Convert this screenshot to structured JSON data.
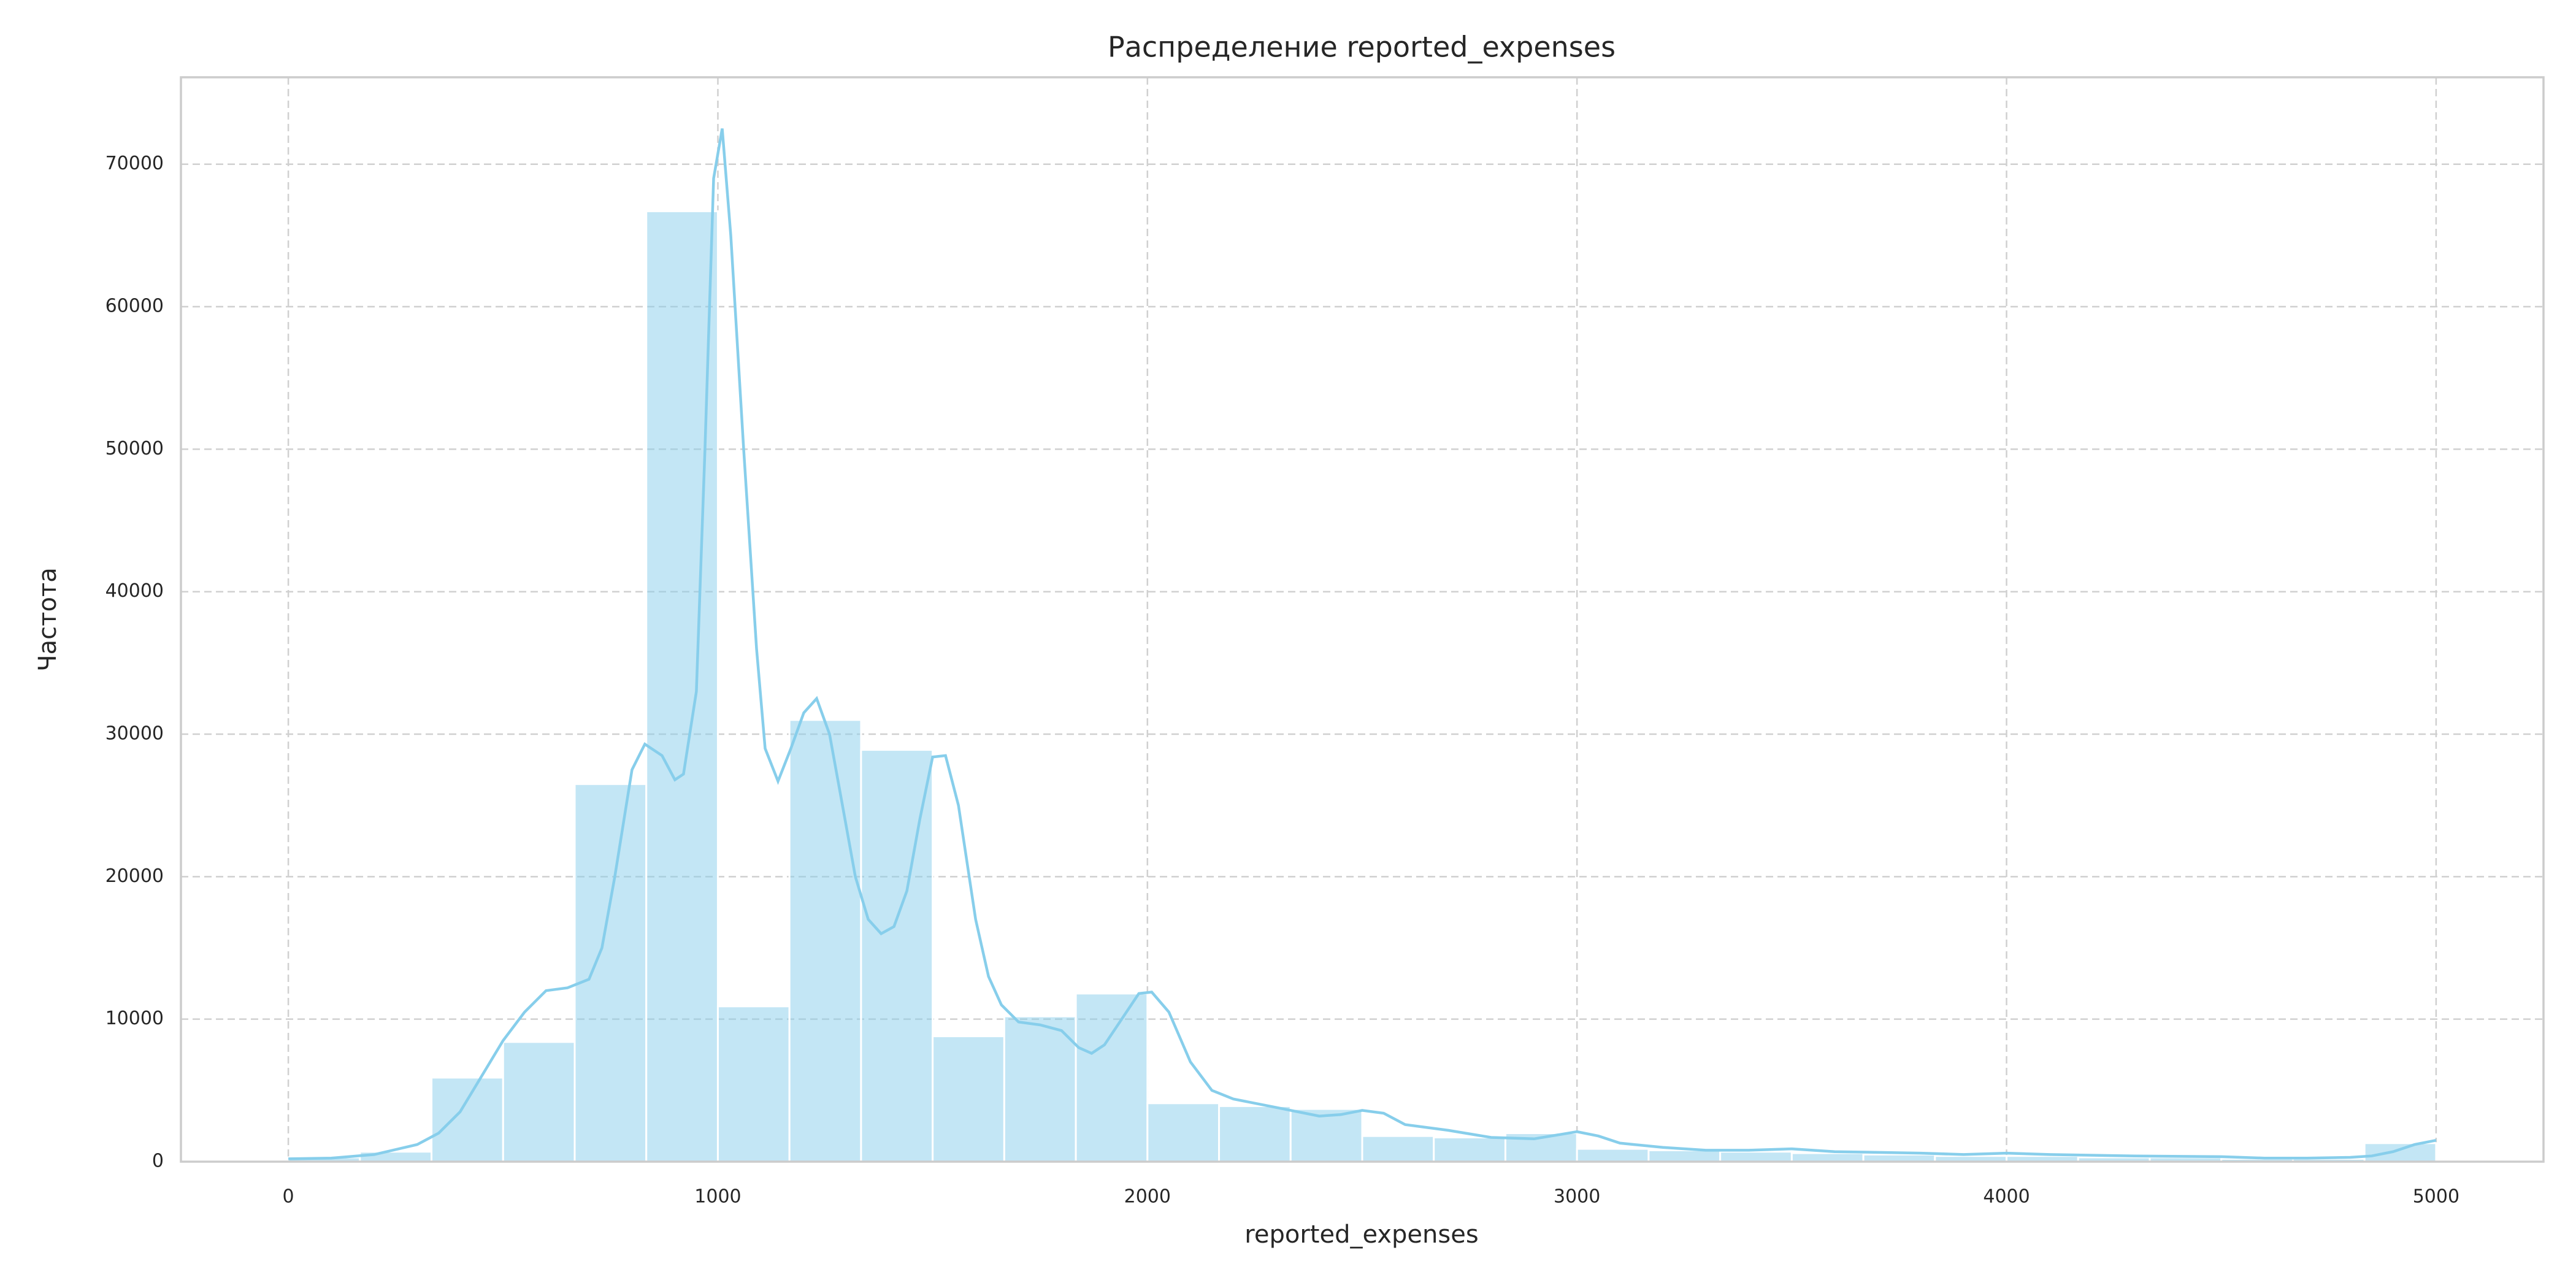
{
  "chart_data": {
    "type": "histogram",
    "title": "Распределение reported_expenses",
    "x_label": "reported_expenses",
    "y_label": "Частота",
    "bins": [
      0,
      166.67,
      333.33,
      500,
      666.67,
      833.33,
      1000,
      1166.67,
      1333.33,
      1500,
      1666.67,
      1833.33,
      2000,
      2166.67,
      2333.33,
      2500,
      2666.67,
      2833.33,
      3000,
      3166.67,
      3333.33,
      3500,
      3666.67,
      3833.33,
      4000,
      4166.67,
      4333.33,
      4500,
      4666.67,
      4833.33,
      5000
    ],
    "counts": [
      300,
      700,
      5900,
      8400,
      26500,
      66700,
      10900,
      31000,
      28900,
      8800,
      10200,
      11800,
      4100,
      3900,
      3700,
      1800,
      1700,
      2000,
      900,
      800,
      700,
      600,
      500,
      400,
      400,
      300,
      300,
      200,
      200,
      1300
    ],
    "kde": {
      "x": [
        0,
        100,
        200,
        300,
        350,
        400,
        450,
        500,
        550,
        600,
        650,
        700,
        730,
        760,
        800,
        830,
        870,
        900,
        920,
        950,
        970,
        990,
        1010,
        1030,
        1060,
        1090,
        1110,
        1140,
        1170,
        1200,
        1230,
        1260,
        1290,
        1320,
        1350,
        1380,
        1410,
        1440,
        1470,
        1500,
        1530,
        1560,
        1600,
        1630,
        1660,
        1700,
        1750,
        1800,
        1840,
        1870,
        1900,
        1940,
        1980,
        2010,
        2050,
        2100,
        2150,
        2200,
        2300,
        2400,
        2450,
        2500,
        2550,
        2600,
        2700,
        2800,
        2900,
        3000,
        3050,
        3100,
        3200,
        3300,
        3400,
        3500,
        3600,
        3800,
        3900,
        4000,
        4100,
        4300,
        4500,
        4600,
        4700,
        4800,
        4850,
        4900,
        4950,
        5000
      ],
      "y": [
        200,
        250,
        500,
        1200,
        2000,
        3500,
        6000,
        8500,
        10500,
        12000,
        12200,
        12800,
        15000,
        20000,
        27500,
        29300,
        28500,
        26800,
        27200,
        33000,
        50000,
        69000,
        72500,
        65000,
        50000,
        36000,
        29000,
        26700,
        29000,
        31500,
        32500,
        30000,
        25000,
        20000,
        17000,
        16000,
        16500,
        19000,
        24000,
        28400,
        28500,
        25000,
        17000,
        13000,
        11000,
        9800,
        9600,
        9200,
        8000,
        7600,
        8200,
        10000,
        11800,
        11900,
        10500,
        7000,
        5000,
        4400,
        3800,
        3200,
        3300,
        3600,
        3400,
        2600,
        2200,
        1700,
        1600,
        2100,
        1800,
        1300,
        1000,
        800,
        800,
        900,
        700,
        600,
        500,
        600,
        500,
        400,
        350,
        250,
        250,
        300,
        400,
        700,
        1200,
        1500
      ]
    },
    "color": "#87ceeb",
    "xlim": [
      -250,
      5250
    ],
    "xticks": [
      0,
      1000,
      2000,
      3000,
      4000,
      5000
    ],
    "ylim": [
      0,
      76100
    ],
    "yticks": [
      0,
      10000,
      20000,
      30000,
      40000,
      50000,
      60000,
      70000
    ],
    "grid": true
  }
}
